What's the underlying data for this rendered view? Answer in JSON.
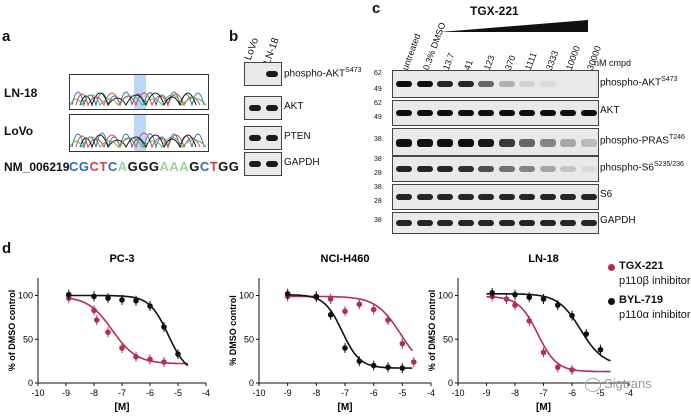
{
  "panel_a": {
    "letter": "a",
    "rows": [
      "LN-18",
      "LoVo"
    ],
    "ref_label": "NM_006219",
    "sequence": [
      {
        "ch": "C",
        "color": "#2a6fb5"
      },
      {
        "ch": "G",
        "color": "#2a6fb5"
      },
      {
        "ch": "C",
        "color": "#e04040"
      },
      {
        "ch": "T",
        "color": "#e04040"
      },
      {
        "ch": "C",
        "color": "#2a6fb5"
      },
      {
        "ch": "A",
        "color": "#9bd49b"
      },
      {
        "ch": "G",
        "color": "#111111"
      },
      {
        "ch": "G",
        "color": "#111111"
      },
      {
        "ch": "G",
        "color": "#111111"
      },
      {
        "ch": "A",
        "color": "#9bd49b"
      },
      {
        "ch": "A",
        "color": "#9bd49b"
      },
      {
        "ch": "A",
        "color": "#9bd49b"
      },
      {
        "ch": "G",
        "color": "#111111"
      },
      {
        "ch": "C",
        "color": "#2a6fb5"
      },
      {
        "ch": "T",
        "color": "#e04040"
      },
      {
        "ch": "G",
        "color": "#111111"
      },
      {
        "ch": "G",
        "color": "#111111"
      }
    ]
  },
  "panel_b": {
    "letter": "b",
    "lanes": [
      "LoVo",
      "LN-18"
    ],
    "bands": [
      {
        "label": "phospho-AKT",
        "sup": "S473"
      },
      {
        "label": "AKT",
        "sup": ""
      },
      {
        "label": "PTEN",
        "sup": ""
      },
      {
        "label": "GAPDH",
        "sup": ""
      }
    ]
  },
  "panel_c": {
    "letter": "c",
    "compound": "TGX-221",
    "lanes": [
      "untreated",
      "0.3% DMSO",
      "13.7",
      "41",
      "123",
      "370",
      "1111",
      "3333",
      "10000",
      "30000"
    ],
    "unit": "nM cmpd",
    "rows": [
      {
        "label": "phospho-AKT",
        "sup": "S473",
        "mw": [
          "62",
          "49"
        ]
      },
      {
        "label": "AKT",
        "sup": "",
        "mw": [
          "62",
          "49"
        ]
      },
      {
        "label": "phospho-PRAS",
        "sup": "T246",
        "mw": [
          "38"
        ]
      },
      {
        "label": "phospho-S6",
        "sup": "S235/236",
        "mw": [
          "38",
          "28"
        ]
      },
      {
        "label": "S6",
        "sup": "",
        "mw": [
          "38",
          "28"
        ]
      },
      {
        "label": "GAPDH",
        "sup": "",
        "mw": [
          "38"
        ]
      }
    ]
  },
  "panel_d": {
    "letter": "d",
    "legend": [
      {
        "name": "TGX-221",
        "desc": "p110β inhibitor",
        "color": "#b0304f"
      },
      {
        "name": "BYL-719",
        "desc": "p110α inhibitor",
        "color": "#111111"
      }
    ],
    "watermark": "Sigtrans"
  },
  "chart_data": [
    {
      "type": "scatter",
      "title": "PC-3",
      "xlabel": "[M]",
      "ylabel": "% of DMSO control",
      "xlim": [
        -10,
        -4
      ],
      "ylim": [
        0,
        120
      ],
      "xticks": [
        -10,
        -9,
        -8,
        -7,
        -6,
        -5,
        -4
      ],
      "yticks": [
        0,
        50,
        100
      ],
      "series": [
        {
          "name": "TGX-221",
          "color": "#b0304f",
          "x": [
            -8.9,
            -8.0,
            -7.9,
            -7.5,
            -7.0,
            -6.5,
            -6.0,
            -5.5
          ],
          "y": [
            97,
            83,
            72,
            58,
            40,
            30,
            27,
            24
          ]
        },
        {
          "name": "BYL-719",
          "color": "#111111",
          "x": [
            -8.9,
            -8.0,
            -7.5,
            -7.0,
            -6.5,
            -6.0,
            -5.5,
            -5.0
          ],
          "y": [
            101,
            99,
            97,
            95,
            94,
            88,
            64,
            33
          ]
        }
      ]
    },
    {
      "type": "scatter",
      "title": "NCI-H460",
      "xlabel": "[M]",
      "ylabel": "% DMSO control",
      "xlim": [
        -10,
        -4
      ],
      "ylim": [
        0,
        120
      ],
      "xticks": [
        -10,
        -9,
        -8,
        -7,
        -6,
        -5,
        -4
      ],
      "yticks": [
        0,
        50,
        100
      ],
      "series": [
        {
          "name": "TGX-221",
          "color": "#b0304f",
          "x": [
            -9.0,
            -8.0,
            -7.5,
            -7.0,
            -6.5,
            -6.0,
            -5.5,
            -5.0,
            -4.6
          ],
          "y": [
            99,
            98,
            96,
            82,
            90,
            84,
            72,
            45,
            24
          ]
        },
        {
          "name": "BYL-719",
          "color": "#111111",
          "x": [
            -9.0,
            -8.0,
            -7.5,
            -7.0,
            -6.5,
            -6.0,
            -5.5,
            -5.0
          ],
          "y": [
            102,
            99,
            78,
            40,
            25,
            20,
            18,
            17
          ]
        }
      ]
    },
    {
      "type": "scatter",
      "title": "LN-18",
      "xlabel": "[M]",
      "ylabel": "% of DMSO control",
      "xlim": [
        -10,
        -4
      ],
      "ylim": [
        0,
        120
      ],
      "xticks": [
        -10,
        -9,
        -8,
        -7,
        -6,
        -5,
        -4
      ],
      "yticks": [
        0,
        50,
        100
      ],
      "series": [
        {
          "name": "TGX-221",
          "color": "#b0304f",
          "x": [
            -8.8,
            -8.3,
            -8.0,
            -7.5,
            -7.0,
            -6.5,
            -6.0
          ],
          "y": [
            99,
            96,
            89,
            71,
            35,
            18,
            15
          ]
        },
        {
          "name": "BYL-719",
          "color": "#111111",
          "x": [
            -8.8,
            -8.0,
            -7.5,
            -7.0,
            -6.5,
            -6.0,
            -5.5,
            -5.0
          ],
          "y": [
            103,
            101,
            98,
            96,
            89,
            77,
            56,
            38
          ]
        }
      ]
    }
  ]
}
